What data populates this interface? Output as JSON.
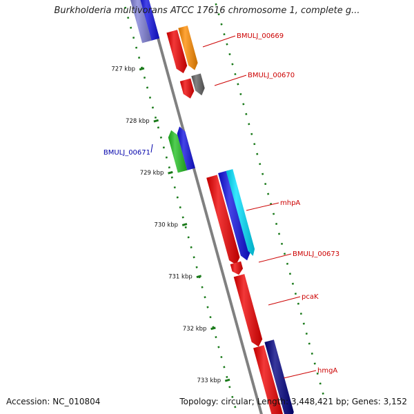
{
  "title": "Burkholderia multivorans ATCC 17616 chromosome 1, complete g...",
  "footer": {
    "accession": "Accession: NC_010804",
    "stats": "Topology: circular; Length: 3,448,421 bp; Genes: 3,152"
  },
  "colors": {
    "backbone": "#808080",
    "ticks": "#1a7a1a",
    "label_forward": "#cc0000",
    "label_reverse": "#0000aa"
  },
  "ticks": [
    {
      "label": "727 kbp"
    },
    {
      "label": "728 kbp"
    },
    {
      "label": "729 kbp"
    },
    {
      "label": "730 kbp"
    },
    {
      "label": "731 kbp"
    },
    {
      "label": "732 kbp"
    },
    {
      "label": "733 kbp"
    }
  ],
  "genes": [
    {
      "id": "g1",
      "strand": "reverse",
      "track": 1,
      "color": "#8080d8",
      "label": ""
    },
    {
      "id": "g2",
      "strand": "reverse",
      "track": 2,
      "color": "#1010e0",
      "label": ""
    },
    {
      "id": "g3",
      "strand": "forward",
      "track": 1,
      "color": "#ee0000",
      "label": ""
    },
    {
      "id": "g4",
      "strand": "forward",
      "track": 2,
      "color": "#ff8c00",
      "label": "BMULJ_00669"
    },
    {
      "id": "g5",
      "strand": "forward",
      "track": 1,
      "color": "#ee0000",
      "label": ""
    },
    {
      "id": "g6",
      "strand": "forward",
      "track": 2,
      "color": "#606060",
      "label": "BMULJ_00670"
    },
    {
      "id": "g7",
      "strand": "reverse",
      "track": 1,
      "color": "#22c022",
      "label": ""
    },
    {
      "id": "g8",
      "strand": "reverse",
      "track": 2,
      "color": "#1010e0",
      "label": "BMULJ_00671"
    },
    {
      "id": "g9",
      "strand": "forward",
      "track": 1,
      "color": "#ee0000",
      "label": ""
    },
    {
      "id": "g10",
      "strand": "forward",
      "track": 2,
      "color": "#1010e0",
      "label": ""
    },
    {
      "id": "g11",
      "strand": "forward",
      "track": 3,
      "color": "#00e0ff",
      "label": "mhpA"
    },
    {
      "id": "g12",
      "strand": "forward",
      "track": 1,
      "color": "#ee0000",
      "label": "BMULJ_00673"
    },
    {
      "id": "g13",
      "strand": "forward",
      "track": 1,
      "color": "#ee0000",
      "label": "pcaK"
    },
    {
      "id": "g14",
      "strand": "forward",
      "track": 1,
      "color": "#ee0000",
      "label": ""
    },
    {
      "id": "g15",
      "strand": "forward",
      "track": 2,
      "color": "#000080",
      "label": "hmgA"
    }
  ]
}
